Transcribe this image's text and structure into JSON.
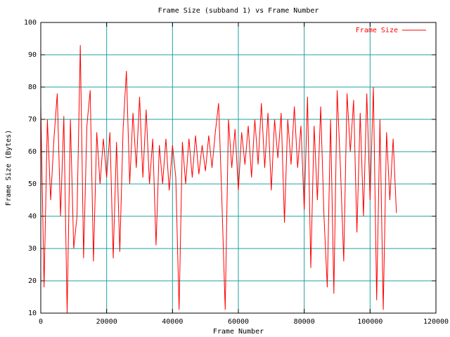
{
  "chart_data": {
    "type": "line",
    "title": "Frame Size (subband 1) vs Frame Number",
    "x_label": "Frame Number",
    "y_label": "Frame Size (Bytes)",
    "x": [
      0,
      1000,
      2000,
      3000,
      4000,
      5000,
      6000,
      7000,
      8000,
      9000,
      10000,
      11000,
      12000,
      13000,
      14000,
      15000,
      16000,
      17000,
      18000,
      19000,
      20000,
      21000,
      22000,
      23000,
      24000,
      25000,
      26000,
      27000,
      28000,
      29000,
      30000,
      31000,
      32000,
      33000,
      34000,
      35000,
      36000,
      37000,
      38000,
      39000,
      40000,
      41000,
      42000,
      43000,
      44000,
      45000,
      46000,
      47000,
      48000,
      49000,
      50000,
      51000,
      52000,
      53000,
      54000,
      55000,
      56000,
      57000,
      58000,
      59000,
      60000,
      61000,
      62000,
      63000,
      64000,
      65000,
      66000,
      67000,
      68000,
      69000,
      70000,
      71000,
      72000,
      73000,
      74000,
      75000,
      76000,
      77000,
      78000,
      79000,
      80000,
      81000,
      82000,
      83000,
      84000,
      85000,
      86000,
      87000,
      88000,
      89000,
      90000,
      91000,
      92000,
      93000,
      94000,
      95000,
      96000,
      97000,
      98000,
      99000,
      100000,
      101000,
      102000,
      103000,
      104000,
      105000,
      106000,
      107000,
      108000
    ],
    "series": [
      {
        "name": "Frame Size",
        "color": "#ff0000",
        "values": [
          74,
          18,
          70,
          45,
          64,
          78,
          40,
          71,
          10,
          70,
          30,
          40,
          93,
          27,
          68,
          79,
          26,
          66,
          50,
          64,
          52,
          66,
          27,
          63,
          29,
          67,
          85,
          50,
          72,
          55,
          77,
          52,
          73,
          50,
          64,
          31,
          62,
          50,
          64,
          48,
          62,
          52,
          11,
          63,
          50,
          64,
          52,
          65,
          53,
          62,
          54,
          65,
          55,
          66,
          75,
          45,
          11,
          70,
          55,
          67,
          48,
          66,
          56,
          68,
          52,
          70,
          56,
          75,
          55,
          72,
          48,
          70,
          58,
          72,
          38,
          70,
          56,
          74,
          55,
          68,
          42,
          77,
          24,
          68,
          45,
          74,
          40,
          18,
          70,
          16,
          79,
          55,
          26,
          78,
          60,
          76,
          35,
          72,
          40,
          78,
          45,
          80,
          14,
          70,
          11,
          66,
          45,
          64,
          41
        ]
      }
    ],
    "xlim": [
      0,
      120000
    ],
    "ylim": [
      10,
      100
    ],
    "xticks": [
      0,
      20000,
      40000,
      60000,
      80000,
      100000,
      120000
    ],
    "yticks": [
      10,
      20,
      30,
      40,
      50,
      60,
      70,
      80,
      90,
      100
    ],
    "grid": true,
    "grid_color": "#20a0a0",
    "legend": "upper right"
  }
}
